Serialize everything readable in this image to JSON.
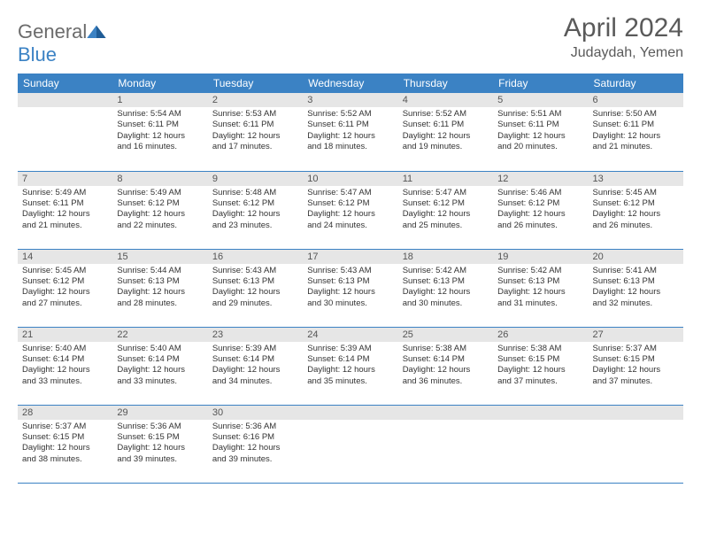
{
  "logo": {
    "text1": "General",
    "text2": "Blue"
  },
  "title": "April 2024",
  "location": "Judaydah, Yemen",
  "colors": {
    "header_bg": "#3b82c4",
    "header_fg": "#ffffff",
    "daynum_bg": "#e6e6e6",
    "text": "#333333",
    "title_color": "#5a5a5a",
    "border": "#3b82c4"
  },
  "weekdays": [
    "Sunday",
    "Monday",
    "Tuesday",
    "Wednesday",
    "Thursday",
    "Friday",
    "Saturday"
  ],
  "weeks": [
    [
      null,
      {
        "n": "1",
        "sr": "5:54 AM",
        "ss": "6:11 PM",
        "dh": "12",
        "dm": "16"
      },
      {
        "n": "2",
        "sr": "5:53 AM",
        "ss": "6:11 PM",
        "dh": "12",
        "dm": "17"
      },
      {
        "n": "3",
        "sr": "5:52 AM",
        "ss": "6:11 PM",
        "dh": "12",
        "dm": "18"
      },
      {
        "n": "4",
        "sr": "5:52 AM",
        "ss": "6:11 PM",
        "dh": "12",
        "dm": "19"
      },
      {
        "n": "5",
        "sr": "5:51 AM",
        "ss": "6:11 PM",
        "dh": "12",
        "dm": "20"
      },
      {
        "n": "6",
        "sr": "5:50 AM",
        "ss": "6:11 PM",
        "dh": "12",
        "dm": "21"
      }
    ],
    [
      {
        "n": "7",
        "sr": "5:49 AM",
        "ss": "6:11 PM",
        "dh": "12",
        "dm": "21"
      },
      {
        "n": "8",
        "sr": "5:49 AM",
        "ss": "6:12 PM",
        "dh": "12",
        "dm": "22"
      },
      {
        "n": "9",
        "sr": "5:48 AM",
        "ss": "6:12 PM",
        "dh": "12",
        "dm": "23"
      },
      {
        "n": "10",
        "sr": "5:47 AM",
        "ss": "6:12 PM",
        "dh": "12",
        "dm": "24"
      },
      {
        "n": "11",
        "sr": "5:47 AM",
        "ss": "6:12 PM",
        "dh": "12",
        "dm": "25"
      },
      {
        "n": "12",
        "sr": "5:46 AM",
        "ss": "6:12 PM",
        "dh": "12",
        "dm": "26"
      },
      {
        "n": "13",
        "sr": "5:45 AM",
        "ss": "6:12 PM",
        "dh": "12",
        "dm": "26"
      }
    ],
    [
      {
        "n": "14",
        "sr": "5:45 AM",
        "ss": "6:12 PM",
        "dh": "12",
        "dm": "27"
      },
      {
        "n": "15",
        "sr": "5:44 AM",
        "ss": "6:13 PM",
        "dh": "12",
        "dm": "28"
      },
      {
        "n": "16",
        "sr": "5:43 AM",
        "ss": "6:13 PM",
        "dh": "12",
        "dm": "29"
      },
      {
        "n": "17",
        "sr": "5:43 AM",
        "ss": "6:13 PM",
        "dh": "12",
        "dm": "30"
      },
      {
        "n": "18",
        "sr": "5:42 AM",
        "ss": "6:13 PM",
        "dh": "12",
        "dm": "30"
      },
      {
        "n": "19",
        "sr": "5:42 AM",
        "ss": "6:13 PM",
        "dh": "12",
        "dm": "31"
      },
      {
        "n": "20",
        "sr": "5:41 AM",
        "ss": "6:13 PM",
        "dh": "12",
        "dm": "32"
      }
    ],
    [
      {
        "n": "21",
        "sr": "5:40 AM",
        "ss": "6:14 PM",
        "dh": "12",
        "dm": "33"
      },
      {
        "n": "22",
        "sr": "5:40 AM",
        "ss": "6:14 PM",
        "dh": "12",
        "dm": "33"
      },
      {
        "n": "23",
        "sr": "5:39 AM",
        "ss": "6:14 PM",
        "dh": "12",
        "dm": "34"
      },
      {
        "n": "24",
        "sr": "5:39 AM",
        "ss": "6:14 PM",
        "dh": "12",
        "dm": "35"
      },
      {
        "n": "25",
        "sr": "5:38 AM",
        "ss": "6:14 PM",
        "dh": "12",
        "dm": "36"
      },
      {
        "n": "26",
        "sr": "5:38 AM",
        "ss": "6:15 PM",
        "dh": "12",
        "dm": "37"
      },
      {
        "n": "27",
        "sr": "5:37 AM",
        "ss": "6:15 PM",
        "dh": "12",
        "dm": "37"
      }
    ],
    [
      {
        "n": "28",
        "sr": "5:37 AM",
        "ss": "6:15 PM",
        "dh": "12",
        "dm": "38"
      },
      {
        "n": "29",
        "sr": "5:36 AM",
        "ss": "6:15 PM",
        "dh": "12",
        "dm": "39"
      },
      {
        "n": "30",
        "sr": "5:36 AM",
        "ss": "6:16 PM",
        "dh": "12",
        "dm": "39"
      },
      null,
      null,
      null,
      null
    ]
  ],
  "labels": {
    "sunrise": "Sunrise:",
    "sunset": "Sunset:",
    "daylight": "Daylight:",
    "hours": "hours",
    "and": "and",
    "minutes": "minutes."
  }
}
